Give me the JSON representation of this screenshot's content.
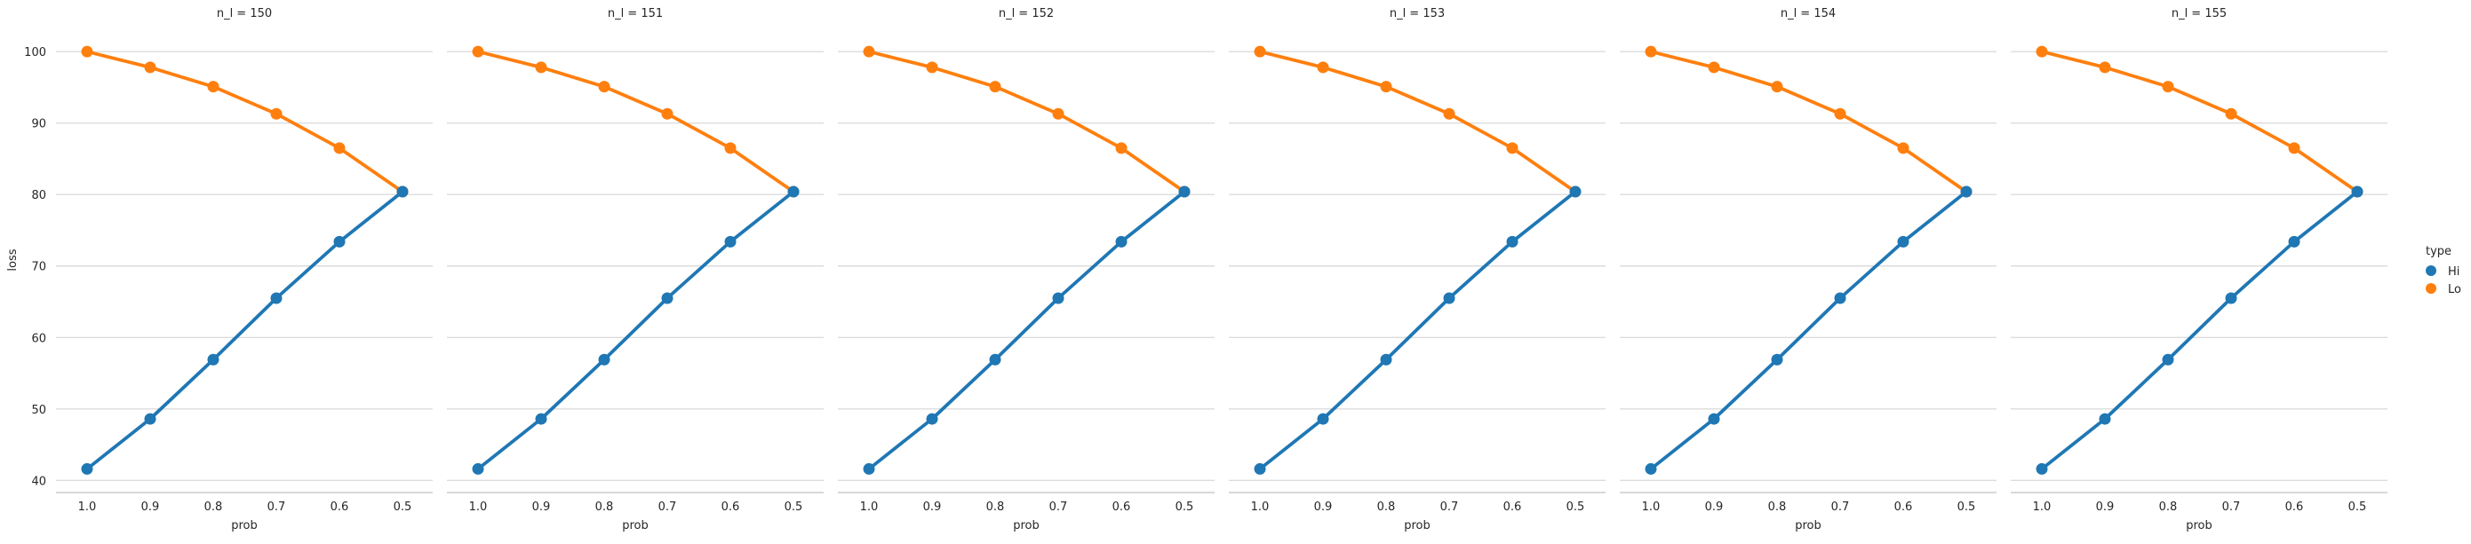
{
  "chart_data": {
    "type": "line",
    "facet_variable": "n_l",
    "panels": [
      {
        "title": "n_l = 150"
      },
      {
        "title": "n_l = 151"
      },
      {
        "title": "n_l = 152"
      },
      {
        "title": "n_l = 153"
      },
      {
        "title": "n_l = 154"
      },
      {
        "title": "n_l = 155"
      }
    ],
    "categories": [
      "1.0",
      "0.9",
      "0.8",
      "0.7",
      "0.6",
      "0.5"
    ],
    "xlabel": "prob",
    "ylabel": "loss",
    "yticks": [
      40,
      50,
      60,
      70,
      80,
      90,
      100
    ],
    "ylim": [
      38.3,
      103.5
    ],
    "grid": "horizontal",
    "series": [
      {
        "name": "Hi",
        "color": "#1f77b4",
        "values": [
          41.6,
          48.6,
          56.9,
          65.5,
          73.4,
          80.4
        ]
      },
      {
        "name": "Lo",
        "color": "#ff7f0e",
        "values": [
          100.0,
          97.8,
          95.1,
          91.3,
          86.5,
          80.4
        ]
      }
    ],
    "legend": {
      "title": "type",
      "placement": "right"
    }
  }
}
